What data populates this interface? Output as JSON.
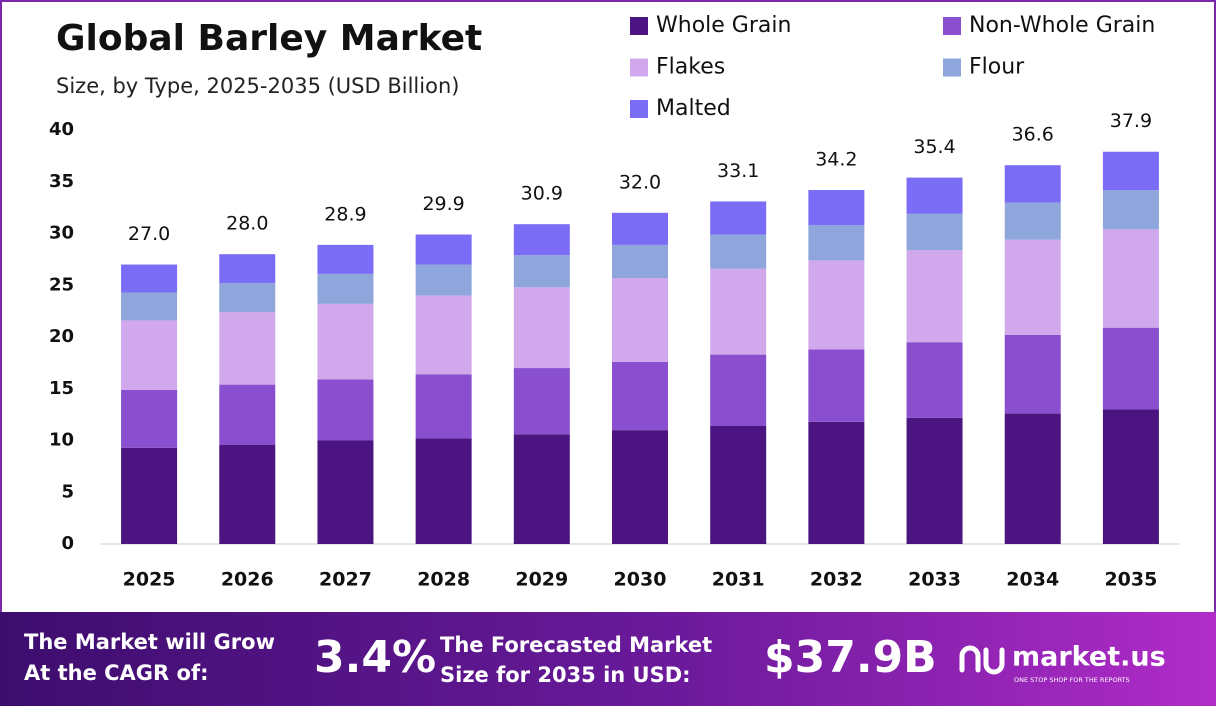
{
  "chart_data": {
    "type": "stacked_bar",
    "title": "Global Barley Market",
    "subtitle": "Size, by Type, 2025-2035 (USD Billion)",
    "categories": [
      "2025",
      "2026",
      "2027",
      "2028",
      "2029",
      "2030",
      "2031",
      "2032",
      "2033",
      "2034",
      "2035"
    ],
    "series": [
      {
        "name": "Whole Grain",
        "color": "#4b1480",
        "values": [
          9.3,
          9.6,
          10.0,
          10.2,
          10.6,
          11.0,
          11.4,
          11.8,
          12.2,
          12.6,
          13.0
        ]
      },
      {
        "name": "Non-Whole Grain",
        "color": "#8a4fcf",
        "values": [
          5.6,
          5.8,
          5.9,
          6.2,
          6.4,
          6.6,
          6.9,
          7.0,
          7.3,
          7.6,
          7.9
        ]
      },
      {
        "name": "Flakes",
        "color": "#d1a8ec",
        "values": [
          6.7,
          7.0,
          7.3,
          7.6,
          7.8,
          8.1,
          8.3,
          8.6,
          8.9,
          9.2,
          9.5
        ]
      },
      {
        "name": "Flour",
        "color": "#8fa6dc",
        "values": [
          2.7,
          2.8,
          2.9,
          3.0,
          3.1,
          3.2,
          3.3,
          3.4,
          3.5,
          3.6,
          3.8
        ]
      },
      {
        "name": "Malted",
        "color": "#7b6cf6",
        "values": [
          2.7,
          2.8,
          2.8,
          2.9,
          3.0,
          3.1,
          3.2,
          3.4,
          3.5,
          3.6,
          3.7
        ]
      }
    ],
    "totals": [
      27.0,
      28.0,
      28.9,
      29.9,
      30.9,
      32.0,
      33.1,
      34.2,
      35.4,
      36.6,
      37.9
    ],
    "total_labels": [
      "27.0",
      "28.0",
      "28.9",
      "29.9",
      "30.9",
      "32.0",
      "33.1",
      "34.2",
      "35.4",
      "36.6",
      "37.9"
    ],
    "ylim": [
      0,
      40
    ],
    "yticks": [
      0,
      5,
      10,
      15,
      20,
      25,
      30,
      35,
      40
    ],
    "grid": false,
    "legend": "top-right"
  },
  "footer": {
    "cagr_text": [
      "The Market will Grow",
      "At the CAGR of:"
    ],
    "cagr_value": "3.4%",
    "forecast_text": [
      "The Forecasted Market",
      "Size for 2035 in USD:"
    ],
    "forecast_value": "$37.9B",
    "brand": "market.us",
    "tagline": "ONE STOP SHOP FOR THE REPORTS"
  }
}
